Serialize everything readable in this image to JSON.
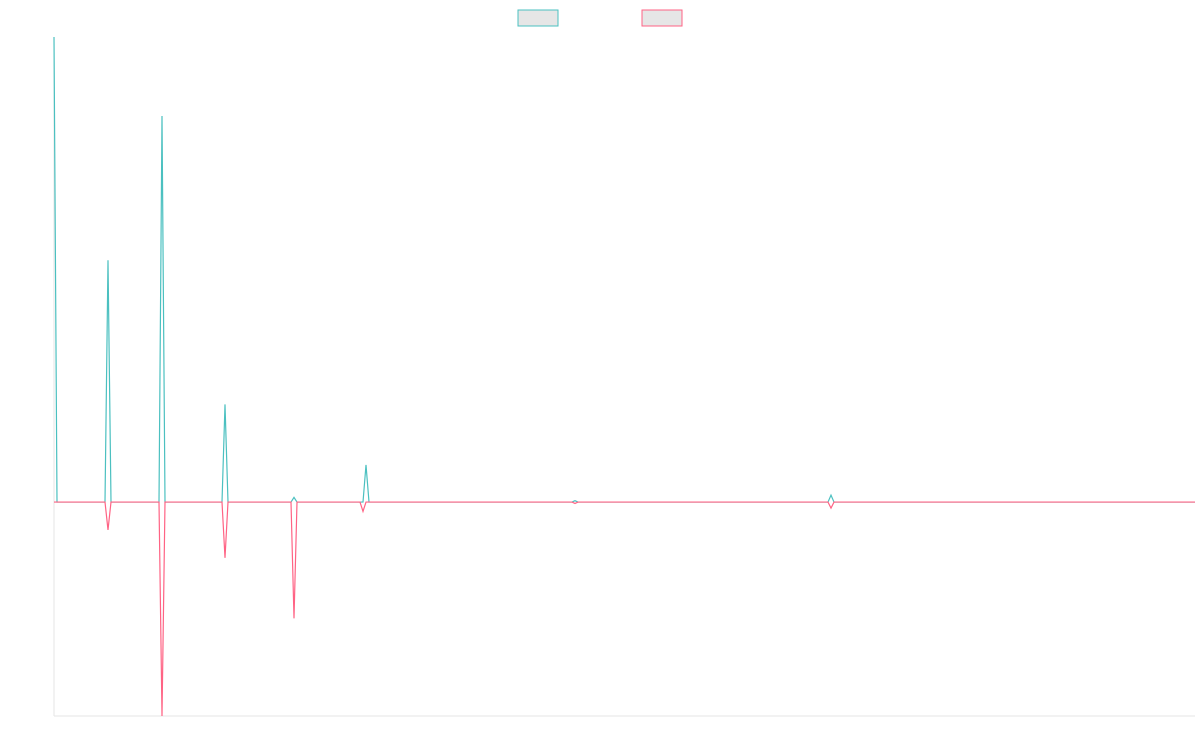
{
  "chart_data": {
    "type": "line",
    "x": [
      0,
      3,
      51,
      54,
      57,
      105,
      108,
      111,
      168,
      171,
      174,
      237,
      240,
      243,
      306,
      309,
      312,
      315,
      518,
      521,
      524,
      774,
      777,
      780,
      1141
    ],
    "series": [
      {
        "color": "#4bc0c0",
        "values": [
          1,
          0,
          0,
          0.52,
          0,
          0,
          0.83,
          0,
          0,
          0.21,
          0,
          0,
          0.01,
          0,
          0,
          0,
          0.08,
          0,
          0,
          0.003,
          0,
          0,
          0.015,
          0,
          0
        ]
      },
      {
        "color": "#ff6384",
        "values": [
          0,
          0,
          0,
          -0.06,
          0,
          0,
          -0.46,
          0,
          0,
          -0.12,
          0,
          0,
          -0.25,
          0,
          0,
          -0.02,
          0,
          0,
          0,
          -0.003,
          0,
          0,
          -0.013,
          0,
          0
        ]
      }
    ],
    "xlim": [
      0,
      1141
    ],
    "ylim": [
      -0.46,
      1
    ],
    "legend": "top"
  }
}
